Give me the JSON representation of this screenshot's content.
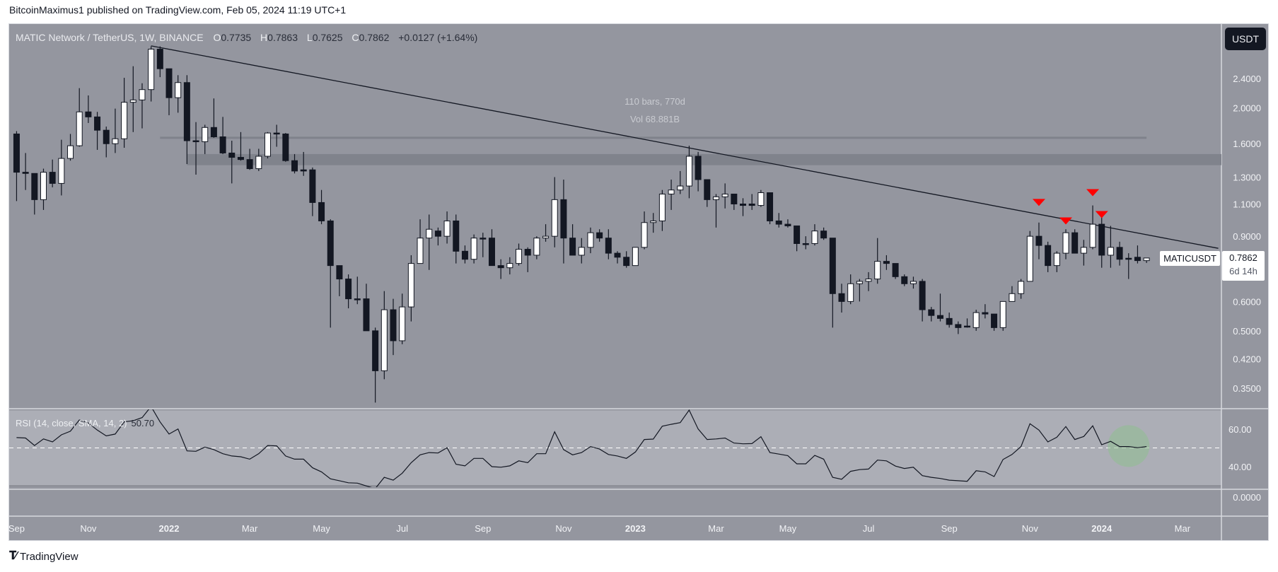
{
  "publisher_line": "BitcoinMaximus1 published on TradingView.com, Feb 05, 2024 11:19 UTC+1",
  "header": {
    "symbol": "MATIC Network / TetherUS, 1W, BINANCE",
    "o_label": "O",
    "o": "0.7735",
    "h_label": "H",
    "h": "0.7863",
    "l_label": "L",
    "l": "0.7625",
    "c_label": "C",
    "c": "0.7862",
    "change": "+0.0127 (+1.64%)"
  },
  "currency_button": "USDT",
  "last_price_tag": {
    "symbol": "MATICUSDT",
    "price": "0.7862",
    "countdown": "6d 14h"
  },
  "measure": {
    "bars": "110 bars, 770d",
    "volume": "Vol 68.881B"
  },
  "rsi_legend": {
    "label": "RSI (14, close, SMA, 14, 2)",
    "value": "50.70"
  },
  "footer": {
    "logo_text": "TradingView"
  },
  "colors": {
    "up_body": "#ffffff",
    "down_body": "#131722",
    "wick": "#131722",
    "pane": "#94969f",
    "rsi_band": "#acaeb6",
    "marker": "#ff0000",
    "highlight": "#8fbf8f"
  },
  "chart_data": [
    {
      "type": "candlestick",
      "title": "MATIC Network / TetherUS, 1W, BINANCE",
      "scale": "log",
      "y_ticks": [
        "2.4000",
        "2.0000",
        "1.6000",
        "1.3000",
        "1.1000",
        "0.9000",
        "0.6000",
        "0.5000",
        "0.4200",
        "0.3500"
      ],
      "x_ticks": [
        {
          "label": "Sep",
          "date": "2021-09-06"
        },
        {
          "label": "Nov",
          "date": "2021-11-01"
        },
        {
          "label": "2022",
          "date": "2022-01-03",
          "year": true
        },
        {
          "label": "Mar",
          "date": "2022-03-07"
        },
        {
          "label": "May",
          "date": "2022-05-02"
        },
        {
          "label": "Jul",
          "date": "2022-07-04"
        },
        {
          "label": "Sep",
          "date": "2022-09-05"
        },
        {
          "label": "Nov",
          "date": "2022-11-07"
        },
        {
          "label": "2023",
          "date": "2023-01-02",
          "year": true
        },
        {
          "label": "Mar",
          "date": "2023-03-06"
        },
        {
          "label": "May",
          "date": "2023-05-01"
        },
        {
          "label": "Jul",
          "date": "2023-07-03"
        },
        {
          "label": "Sep",
          "date": "2023-09-04"
        },
        {
          "label": "Nov",
          "date": "2023-11-06"
        },
        {
          "label": "2024",
          "date": "2024-01-01",
          "year": true
        },
        {
          "label": "Mar",
          "date": "2024-03-04"
        }
      ],
      "candle_fields": [
        "date",
        "open",
        "high",
        "low",
        "close",
        "rsi"
      ],
      "candles": [
        [
          "2021-09-06",
          1.7,
          1.73,
          1.12,
          1.34,
          55.5
        ],
        [
          "2021-09-13",
          1.34,
          1.51,
          1.2,
          1.33,
          55.3
        ],
        [
          "2021-09-20",
          1.33,
          1.33,
          1.03,
          1.13,
          51.3
        ],
        [
          "2021-09-27",
          1.13,
          1.37,
          1.06,
          1.34,
          54.8
        ],
        [
          "2021-10-04",
          1.34,
          1.45,
          1.22,
          1.25,
          53.2
        ],
        [
          "2021-10-11",
          1.25,
          1.64,
          1.16,
          1.46,
          57.0
        ],
        [
          "2021-10-18",
          1.46,
          1.7,
          1.44,
          1.58,
          58.9
        ],
        [
          "2021-10-25",
          1.58,
          2.26,
          1.57,
          1.95,
          64.9
        ],
        [
          "2021-11-01",
          1.95,
          2.16,
          1.82,
          1.89,
          63.3
        ],
        [
          "2021-11-08",
          1.89,
          1.95,
          1.54,
          1.74,
          59.5
        ],
        [
          "2021-11-15",
          1.74,
          1.78,
          1.47,
          1.6,
          56.4
        ],
        [
          "2021-11-22",
          1.6,
          1.99,
          1.51,
          1.65,
          57.4
        ],
        [
          "2021-11-29",
          1.65,
          2.41,
          1.56,
          2.07,
          63.9
        ],
        [
          "2021-12-06",
          2.07,
          2.59,
          1.72,
          2.1,
          64.5
        ],
        [
          "2021-12-13",
          2.1,
          2.33,
          1.76,
          2.24,
          66.2
        ],
        [
          "2021-12-20",
          2.24,
          2.93,
          2.08,
          2.88,
          72.1
        ],
        [
          "2021-12-27",
          2.88,
          2.93,
          2.42,
          2.55,
          63.9
        ],
        [
          "2022-01-03",
          2.55,
          2.55,
          1.91,
          2.13,
          57.4
        ],
        [
          "2022-01-10",
          2.13,
          2.45,
          1.94,
          2.34,
          60.1
        ],
        [
          "2022-01-17",
          2.34,
          2.45,
          1.41,
          1.63,
          48.4
        ],
        [
          "2022-01-24",
          1.63,
          1.83,
          1.32,
          1.62,
          48.2
        ],
        [
          "2022-01-31",
          1.62,
          1.8,
          1.5,
          1.77,
          50.4
        ],
        [
          "2022-02-07",
          1.77,
          2.12,
          1.66,
          1.67,
          49.1
        ],
        [
          "2022-02-14",
          1.67,
          1.89,
          1.5,
          1.51,
          46.9
        ],
        [
          "2022-02-21",
          1.51,
          1.63,
          1.25,
          1.47,
          45.7
        ],
        [
          "2022-02-28",
          1.47,
          1.72,
          1.44,
          1.45,
          45.3
        ],
        [
          "2022-03-07",
          1.45,
          1.55,
          1.36,
          1.37,
          44.0
        ],
        [
          "2022-03-14",
          1.37,
          1.55,
          1.35,
          1.48,
          46.9
        ],
        [
          "2022-03-21",
          1.48,
          1.72,
          1.46,
          1.71,
          51.3
        ],
        [
          "2022-03-28",
          1.71,
          1.8,
          1.57,
          1.7,
          51.1
        ],
        [
          "2022-04-04",
          1.7,
          1.71,
          1.43,
          1.44,
          45.7
        ],
        [
          "2022-04-11",
          1.44,
          1.5,
          1.33,
          1.35,
          44.0
        ],
        [
          "2022-04-18",
          1.36,
          1.52,
          1.31,
          1.35,
          44.0
        ],
        [
          "2022-04-25",
          1.36,
          1.38,
          1.02,
          1.11,
          39.4
        ],
        [
          "2022-05-02",
          1.11,
          1.2,
          0.97,
          0.99,
          37.2
        ],
        [
          "2022-05-09",
          0.99,
          1.0,
          0.51,
          0.75,
          33.5
        ],
        [
          "2022-05-16",
          0.75,
          0.75,
          0.62,
          0.69,
          32.5
        ],
        [
          "2022-05-23",
          0.69,
          0.71,
          0.575,
          0.61,
          31.4
        ],
        [
          "2022-05-30",
          0.61,
          0.7,
          0.59,
          0.608,
          31.2
        ],
        [
          "2022-06-06",
          0.61,
          0.67,
          0.5,
          0.5,
          29.7
        ],
        [
          "2022-06-13",
          0.5,
          0.51,
          0.32,
          0.39,
          28.3
        ],
        [
          "2022-06-20",
          0.39,
          0.64,
          0.37,
          0.57,
          34.3
        ],
        [
          "2022-06-27",
          0.57,
          0.61,
          0.43,
          0.47,
          32.8
        ],
        [
          "2022-07-04",
          0.47,
          0.63,
          0.46,
          0.58,
          36.5
        ],
        [
          "2022-07-11",
          0.58,
          0.8,
          0.53,
          0.76,
          42.1
        ],
        [
          "2022-07-18",
          0.76,
          1.0,
          0.76,
          0.89,
          46.3
        ],
        [
          "2022-07-25",
          0.89,
          1.03,
          0.73,
          0.94,
          47.5
        ],
        [
          "2022-08-01",
          0.93,
          0.95,
          0.85,
          0.9,
          47.3
        ],
        [
          "2022-08-08",
          0.9,
          1.05,
          0.86,
          0.99,
          50.1
        ],
        [
          "2022-08-15",
          0.99,
          1.03,
          0.76,
          0.82,
          41.3
        ],
        [
          "2022-08-22",
          0.82,
          0.85,
          0.76,
          0.78,
          40.4
        ],
        [
          "2022-08-29",
          0.78,
          0.91,
          0.76,
          0.89,
          44.4
        ],
        [
          "2022-09-05",
          0.89,
          0.92,
          0.79,
          0.888,
          44.4
        ],
        [
          "2022-09-12",
          0.89,
          0.94,
          0.75,
          0.75,
          40.0
        ],
        [
          "2022-09-19",
          0.75,
          0.78,
          0.69,
          0.74,
          39.7
        ],
        [
          "2022-09-26",
          0.74,
          0.79,
          0.71,
          0.76,
          40.4
        ],
        [
          "2022-10-03",
          0.76,
          0.86,
          0.75,
          0.83,
          43.1
        ],
        [
          "2022-10-10",
          0.83,
          0.84,
          0.72,
          0.8,
          42.1
        ],
        [
          "2022-10-17",
          0.8,
          0.9,
          0.78,
          0.89,
          46.9
        ],
        [
          "2022-10-24",
          0.89,
          0.97,
          0.87,
          0.9,
          46.9
        ],
        [
          "2022-10-31",
          0.9,
          1.3,
          0.84,
          1.13,
          58.6
        ],
        [
          "2022-11-07",
          1.13,
          1.28,
          0.76,
          0.89,
          49.1
        ],
        [
          "2022-11-14",
          0.89,
          0.97,
          0.8,
          0.8,
          46.3
        ],
        [
          "2022-11-21",
          0.8,
          0.89,
          0.76,
          0.84,
          47.5
        ],
        [
          "2022-11-28",
          0.84,
          0.95,
          0.81,
          0.92,
          50.7
        ],
        [
          "2022-12-05",
          0.92,
          0.94,
          0.87,
          0.89,
          49.4
        ],
        [
          "2022-12-12",
          0.89,
          0.94,
          0.78,
          0.81,
          46.5
        ],
        [
          "2022-12-19",
          0.81,
          0.82,
          0.76,
          0.79,
          45.7
        ],
        [
          "2022-12-26",
          0.79,
          0.82,
          0.74,
          0.75,
          44.4
        ],
        [
          "2023-01-02",
          0.75,
          0.84,
          0.75,
          0.84,
          47.8
        ],
        [
          "2023-01-09",
          0.84,
          1.05,
          0.83,
          0.98,
          54.5
        ],
        [
          "2023-01-16",
          0.98,
          1.04,
          0.92,
          0.99,
          54.7
        ],
        [
          "2023-01-23",
          0.99,
          1.2,
          0.93,
          1.17,
          61.6
        ],
        [
          "2023-01-30",
          1.17,
          1.28,
          1.06,
          1.2,
          62.6
        ],
        [
          "2023-02-06",
          1.2,
          1.35,
          1.17,
          1.23,
          63.5
        ],
        [
          "2023-02-13",
          1.23,
          1.58,
          1.14,
          1.48,
          70.2
        ],
        [
          "2023-02-20",
          1.48,
          1.52,
          1.19,
          1.28,
          60.1
        ],
        [
          "2023-02-27",
          1.28,
          1.28,
          1.08,
          1.13,
          54.5
        ],
        [
          "2023-03-06",
          1.13,
          1.17,
          0.95,
          1.15,
          54.8
        ],
        [
          "2023-03-13",
          1.15,
          1.25,
          1.07,
          1.17,
          55.3
        ],
        [
          "2023-03-20",
          1.17,
          1.17,
          1.06,
          1.1,
          52.6
        ],
        [
          "2023-03-27",
          1.1,
          1.14,
          1.02,
          1.09,
          52.2
        ],
        [
          "2023-04-03",
          1.1,
          1.17,
          1.06,
          1.09,
          52.3
        ],
        [
          "2023-04-10",
          1.09,
          1.2,
          1.08,
          1.18,
          56.0
        ],
        [
          "2023-04-17",
          1.18,
          1.18,
          0.97,
          0.99,
          47.5
        ],
        [
          "2023-04-24",
          0.99,
          1.04,
          0.95,
          0.97,
          46.7
        ],
        [
          "2023-05-01",
          0.97,
          1.0,
          0.95,
          0.96,
          45.9
        ],
        [
          "2023-05-08",
          0.96,
          0.96,
          0.82,
          0.86,
          41.5
        ],
        [
          "2023-05-15",
          0.86,
          0.9,
          0.83,
          0.858,
          41.5
        ],
        [
          "2023-05-22",
          0.86,
          0.97,
          0.85,
          0.93,
          46.0
        ],
        [
          "2023-05-29",
          0.93,
          0.95,
          0.88,
          0.89,
          44.0
        ],
        [
          "2023-06-05",
          0.89,
          0.89,
          0.51,
          0.63,
          34.3
        ],
        [
          "2023-06-12",
          0.63,
          0.67,
          0.56,
          0.6,
          33.3
        ],
        [
          "2023-06-19",
          0.6,
          0.71,
          0.59,
          0.67,
          37.5
        ],
        [
          "2023-06-26",
          0.67,
          0.69,
          0.6,
          0.68,
          38.4
        ],
        [
          "2023-07-03",
          0.68,
          0.72,
          0.64,
          0.69,
          38.7
        ],
        [
          "2023-07-10",
          0.69,
          0.89,
          0.67,
          0.77,
          43.5
        ],
        [
          "2023-07-17",
          0.77,
          0.8,
          0.73,
          0.76,
          43.1
        ],
        [
          "2023-07-24",
          0.76,
          0.76,
          0.69,
          0.7,
          40.3
        ],
        [
          "2023-07-31",
          0.7,
          0.71,
          0.66,
          0.67,
          39.0
        ],
        [
          "2023-08-07",
          0.67,
          0.7,
          0.65,
          0.68,
          39.7
        ],
        [
          "2023-08-14",
          0.68,
          0.69,
          0.53,
          0.57,
          35.2
        ],
        [
          "2023-08-21",
          0.57,
          0.58,
          0.53,
          0.55,
          34.3
        ],
        [
          "2023-08-28",
          0.55,
          0.63,
          0.53,
          0.54,
          33.7
        ],
        [
          "2023-09-04",
          0.54,
          0.56,
          0.51,
          0.52,
          32.8
        ],
        [
          "2023-09-11",
          0.52,
          0.53,
          0.49,
          0.51,
          32.5
        ],
        [
          "2023-09-18",
          0.515,
          0.54,
          0.51,
          0.514,
          32.2
        ],
        [
          "2023-09-25",
          0.51,
          0.57,
          0.5,
          0.56,
          37.8
        ],
        [
          "2023-10-02",
          0.56,
          0.59,
          0.54,
          0.555,
          37.2
        ],
        [
          "2023-10-09",
          0.555,
          0.555,
          0.5,
          0.51,
          34.7
        ],
        [
          "2023-10-16",
          0.51,
          0.6,
          0.5,
          0.6,
          43.8
        ],
        [
          "2023-10-23",
          0.6,
          0.66,
          0.6,
          0.63,
          46.5
        ],
        [
          "2023-10-30",
          0.63,
          0.69,
          0.61,
          0.68,
          50.7
        ],
        [
          "2023-11-06",
          0.68,
          0.93,
          0.68,
          0.9,
          62.9
        ],
        [
          "2023-11-13",
          0.9,
          0.98,
          0.78,
          0.85,
          59.5
        ],
        [
          "2023-11-20",
          0.85,
          0.87,
          0.72,
          0.75,
          53.2
        ],
        [
          "2023-11-27",
          0.75,
          0.82,
          0.72,
          0.81,
          55.7
        ],
        [
          "2023-12-04",
          0.81,
          0.94,
          0.78,
          0.92,
          61.4
        ],
        [
          "2023-12-11",
          0.92,
          0.94,
          0.81,
          0.81,
          54.5
        ],
        [
          "2023-12-18",
          0.81,
          0.88,
          0.75,
          0.84,
          56.1
        ],
        [
          "2023-12-25",
          0.84,
          1.09,
          0.83,
          0.97,
          61.8
        ],
        [
          "2024-01-01",
          0.97,
          1.04,
          0.74,
          0.8,
          51.7
        ],
        [
          "2024-01-08",
          0.8,
          0.96,
          0.74,
          0.84,
          53.5
        ],
        [
          "2024-01-15",
          0.84,
          0.87,
          0.75,
          0.78,
          50.7
        ],
        [
          "2024-01-22",
          0.785,
          0.81,
          0.69,
          0.78,
          50.7
        ],
        [
          "2024-01-29",
          0.79,
          0.85,
          0.76,
          0.7735,
          50.1
        ],
        [
          "2024-02-05",
          0.7735,
          0.7863,
          0.7625,
          0.7862,
          50.7
        ]
      ],
      "drawings": {
        "trendline": {
          "from": {
            "date": "2021-12-20",
            "price": 2.94
          },
          "to": {
            "date": "2024-04-01",
            "price": 0.835
          }
        },
        "horizontal_line": {
          "price": 1.66,
          "from": "2021-12-27",
          "to": "2024-02-05"
        },
        "zone": {
          "low": 1.4,
          "high": 1.5,
          "from": "2022-01-17"
        },
        "sell_markers": [
          {
            "date": "2023-11-13",
            "price": 1.11
          },
          {
            "date": "2023-12-04",
            "price": 0.99
          },
          {
            "date": "2023-12-25",
            "price": 1.18
          },
          {
            "date": "2024-01-01",
            "price": 1.03
          }
        ]
      }
    },
    {
      "type": "line",
      "title": "RSI (14, close, SMA, 14, 2)",
      "y_ticks": [
        "60.00",
        "40.00"
      ],
      "band": [
        30,
        70
      ],
      "midline": 50,
      "highlight": {
        "date": "2024-01-22",
        "rsi": 51
      },
      "lower_pane_tick": "0.0000"
    }
  ]
}
